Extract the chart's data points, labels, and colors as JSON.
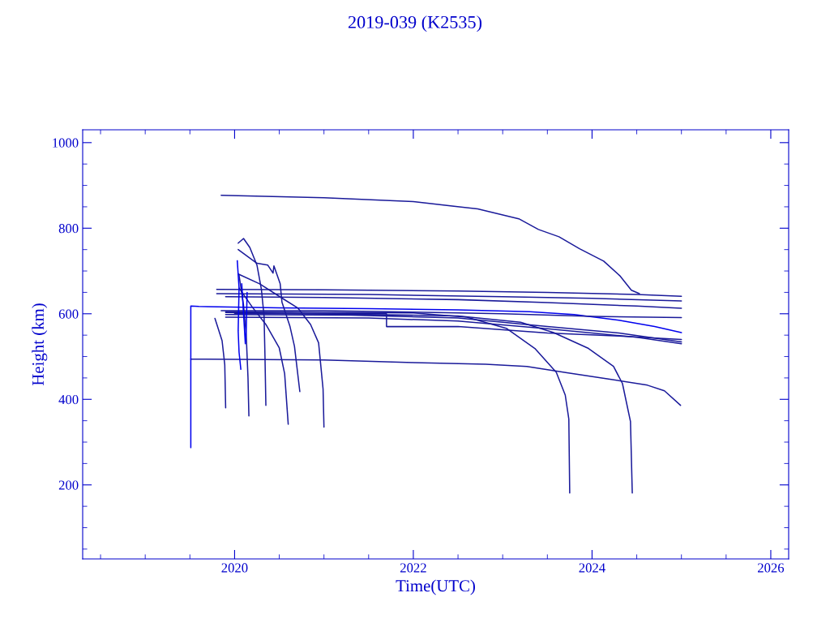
{
  "chart_data": {
    "type": "line",
    "title": "2019-039 (K2535)",
    "xlabel": "Time(UTC)",
    "ylabel": "Height (km)",
    "xlim": [
      2018.3,
      2026.2
    ],
    "ylim": [
      27,
      1030
    ],
    "xticks": [
      {
        "value": 2018.5,
        "label": null
      },
      {
        "value": 2019,
        "label": null
      },
      {
        "value": 2019.5,
        "label": null
      },
      2020,
      {
        "value": 2020.5,
        "label": null
      },
      {
        "value": 2021,
        "label": null
      },
      {
        "value": 2021.5,
        "label": null
      },
      2022,
      {
        "value": 2022.5,
        "label": null
      },
      {
        "value": 2023,
        "label": null
      },
      {
        "value": 2023.5,
        "label": null
      },
      2024,
      {
        "value": 2024.5,
        "label": null
      },
      {
        "value": 2025,
        "label": null
      },
      {
        "value": 2025.5,
        "label": null
      },
      2026
    ],
    "yticks": [
      {
        "value": 50,
        "label": null
      },
      {
        "value": 100,
        "label": null
      },
      {
        "value": 150,
        "label": null
      },
      200,
      {
        "value": 250,
        "label": null
      },
      {
        "value": 300,
        "label": null
      },
      {
        "value": 350,
        "label": null
      },
      400,
      {
        "value": 450,
        "label": null
      },
      {
        "value": 500,
        "label": null
      },
      {
        "value": 550,
        "label": null
      },
      600,
      {
        "value": 650,
        "label": null
      },
      {
        "value": 700,
        "label": null
      },
      {
        "value": 750,
        "label": null
      },
      800,
      {
        "value": 850,
        "label": null
      },
      {
        "value": 900,
        "label": null
      },
      {
        "value": 950,
        "label": null
      },
      1000
    ],
    "grid": false,
    "legend": false,
    "series": [
      {
        "color": "#1a1a9a",
        "x": [
          2019.85,
          2021.0,
          2022.0,
          2022.72,
          2023.18,
          2023.4,
          2023.63,
          2023.86,
          2024.13,
          2024.31,
          2024.44,
          2024.53
        ],
        "values": [
          877,
          871,
          862,
          845,
          822,
          797,
          780,
          752,
          723,
          689,
          655,
          647
        ]
      },
      {
        "color": "#1a1a9a",
        "x": [
          2019.51,
          2021.0,
          2022.0,
          2022.81,
          2023.27,
          2023.72,
          2024.17,
          2024.62,
          2024.81,
          2024.99
        ],
        "values": [
          494,
          492,
          486,
          482,
          477,
          462,
          448,
          433,
          420,
          386
        ]
      },
      {
        "color": "#0000ee",
        "x": [
          2019.51,
          2019.51,
          2019.6,
          2020.5,
          2021.5,
          2022.5,
          2023.3,
          2023.8,
          2024.3,
          2024.7,
          2025.0
        ],
        "values": [
          287,
          618,
          617,
          614,
          612,
          609,
          605,
          598,
          585,
          570,
          556
        ]
      },
      {
        "color": "#1a1a9a",
        "x": [
          2019.8,
          2021.0,
          2022.5,
          2023.5,
          2024.5,
          2025.0
        ],
        "values": [
          657,
          656,
          653,
          650,
          645,
          641
        ]
      },
      {
        "color": "#1a1a9a",
        "x": [
          2019.8,
          2021.5,
          2023.0,
          2024.0,
          2025.0
        ],
        "values": [
          647,
          645,
          640,
          636,
          630
        ]
      },
      {
        "color": "#1a1a9a",
        "x": [
          2019.9,
          2021.0,
          2022.5,
          2023.5,
          2024.5,
          2025.0
        ],
        "values": [
          640,
          638,
          633,
          626,
          618,
          613
        ]
      },
      {
        "color": "#1a1a9a",
        "x": [
          2019.85,
          2021.0,
          2022.0,
          2023.0,
          2024.0,
          2025.0
        ],
        "values": [
          607,
          607,
          604,
          600,
          594,
          591
        ]
      },
      {
        "color": "#1a1a9a",
        "x": [
          2019.9,
          2021.3,
          2022.5,
          2023.5,
          2024.3,
          2025.0
        ],
        "values": [
          598,
          597,
          590,
          570,
          555,
          534
        ]
      },
      {
        "color": "#1a1a9a",
        "x": [
          2019.9,
          2021.5,
          2022.5,
          2023.5,
          2024.5,
          2025.0
        ],
        "values": [
          592,
          590,
          583,
          565,
          545,
          530
        ]
      },
      {
        "color": "#1a1a9a",
        "x": [
          2020.0,
          2021.7,
          2021.7,
          2022.5,
          2023.5,
          2024.3,
          2025.0
        ],
        "values": [
          601,
          600,
          570,
          570,
          555,
          548,
          540
        ]
      },
      {
        "color": "#1a1a9a",
        "x": [
          2019.9,
          2022.0,
          2022.6,
          2023.04,
          2023.36,
          2023.6,
          2023.7,
          2023.74,
          2023.75
        ],
        "values": [
          605,
          602,
          592,
          566,
          519,
          463,
          410,
          354,
          181
        ]
      },
      {
        "color": "#1a1a9a",
        "x": [
          2019.9,
          2022.5,
          2023.2,
          2023.57,
          2023.96,
          2024.24,
          2024.34,
          2024.43,
          2024.45
        ],
        "values": [
          603,
          595,
          580,
          556,
          519,
          477,
          437,
          348,
          181
        ]
      },
      {
        "color": "#1a1a9a",
        "x": [
          2019.78,
          2019.86,
          2019.89,
          2019.9
        ],
        "values": [
          589,
          537,
          481,
          380
        ]
      },
      {
        "color": "#1a1a9a",
        "x": [
          2020.05,
          2020.1,
          2020.13,
          2020.15,
          2020.16
        ],
        "values": [
          690,
          620,
          551,
          450,
          361
        ]
      },
      {
        "color": "#1a1a9a",
        "x": [
          2020.04,
          2020.1,
          2020.17,
          2020.25,
          2020.3,
          2020.33,
          2020.34,
          2020.35
        ],
        "values": [
          765,
          776,
          755,
          714,
          657,
          594,
          500,
          386
        ]
      },
      {
        "color": "#1a1a9a",
        "x": [
          2020.04,
          2020.25,
          2020.37,
          2020.43,
          2020.44,
          2020.51,
          2020.53,
          2020.62,
          2020.67,
          2020.73
        ],
        "values": [
          750,
          718,
          714,
          695,
          712,
          670,
          627,
          570,
          524,
          418
        ]
      },
      {
        "color": "#1a1a9a",
        "x": [
          2020.05,
          2020.2,
          2020.35,
          2020.5,
          2020.56,
          2020.6
        ],
        "values": [
          660,
          615,
          575,
          520,
          460,
          342
        ]
      },
      {
        "color": "#1a1a9a",
        "x": [
          2020.04,
          2020.28,
          2020.52,
          2020.71,
          2020.85,
          2020.94,
          2020.99,
          2021.0
        ],
        "values": [
          693,
          670,
          638,
          613,
          575,
          532,
          424,
          335
        ]
      },
      {
        "color": "#0000ee",
        "x": [
          2020.03,
          2020.05,
          2020.04,
          2020.05,
          2020.07
        ],
        "values": [
          724,
          660,
          560,
          510,
          470
        ]
      },
      {
        "color": "#0000ee",
        "x": [
          2020.08,
          2020.1,
          2020.12,
          2020.13,
          2020.14
        ],
        "values": [
          670,
          600,
          530,
          560,
          650
        ]
      }
    ]
  }
}
